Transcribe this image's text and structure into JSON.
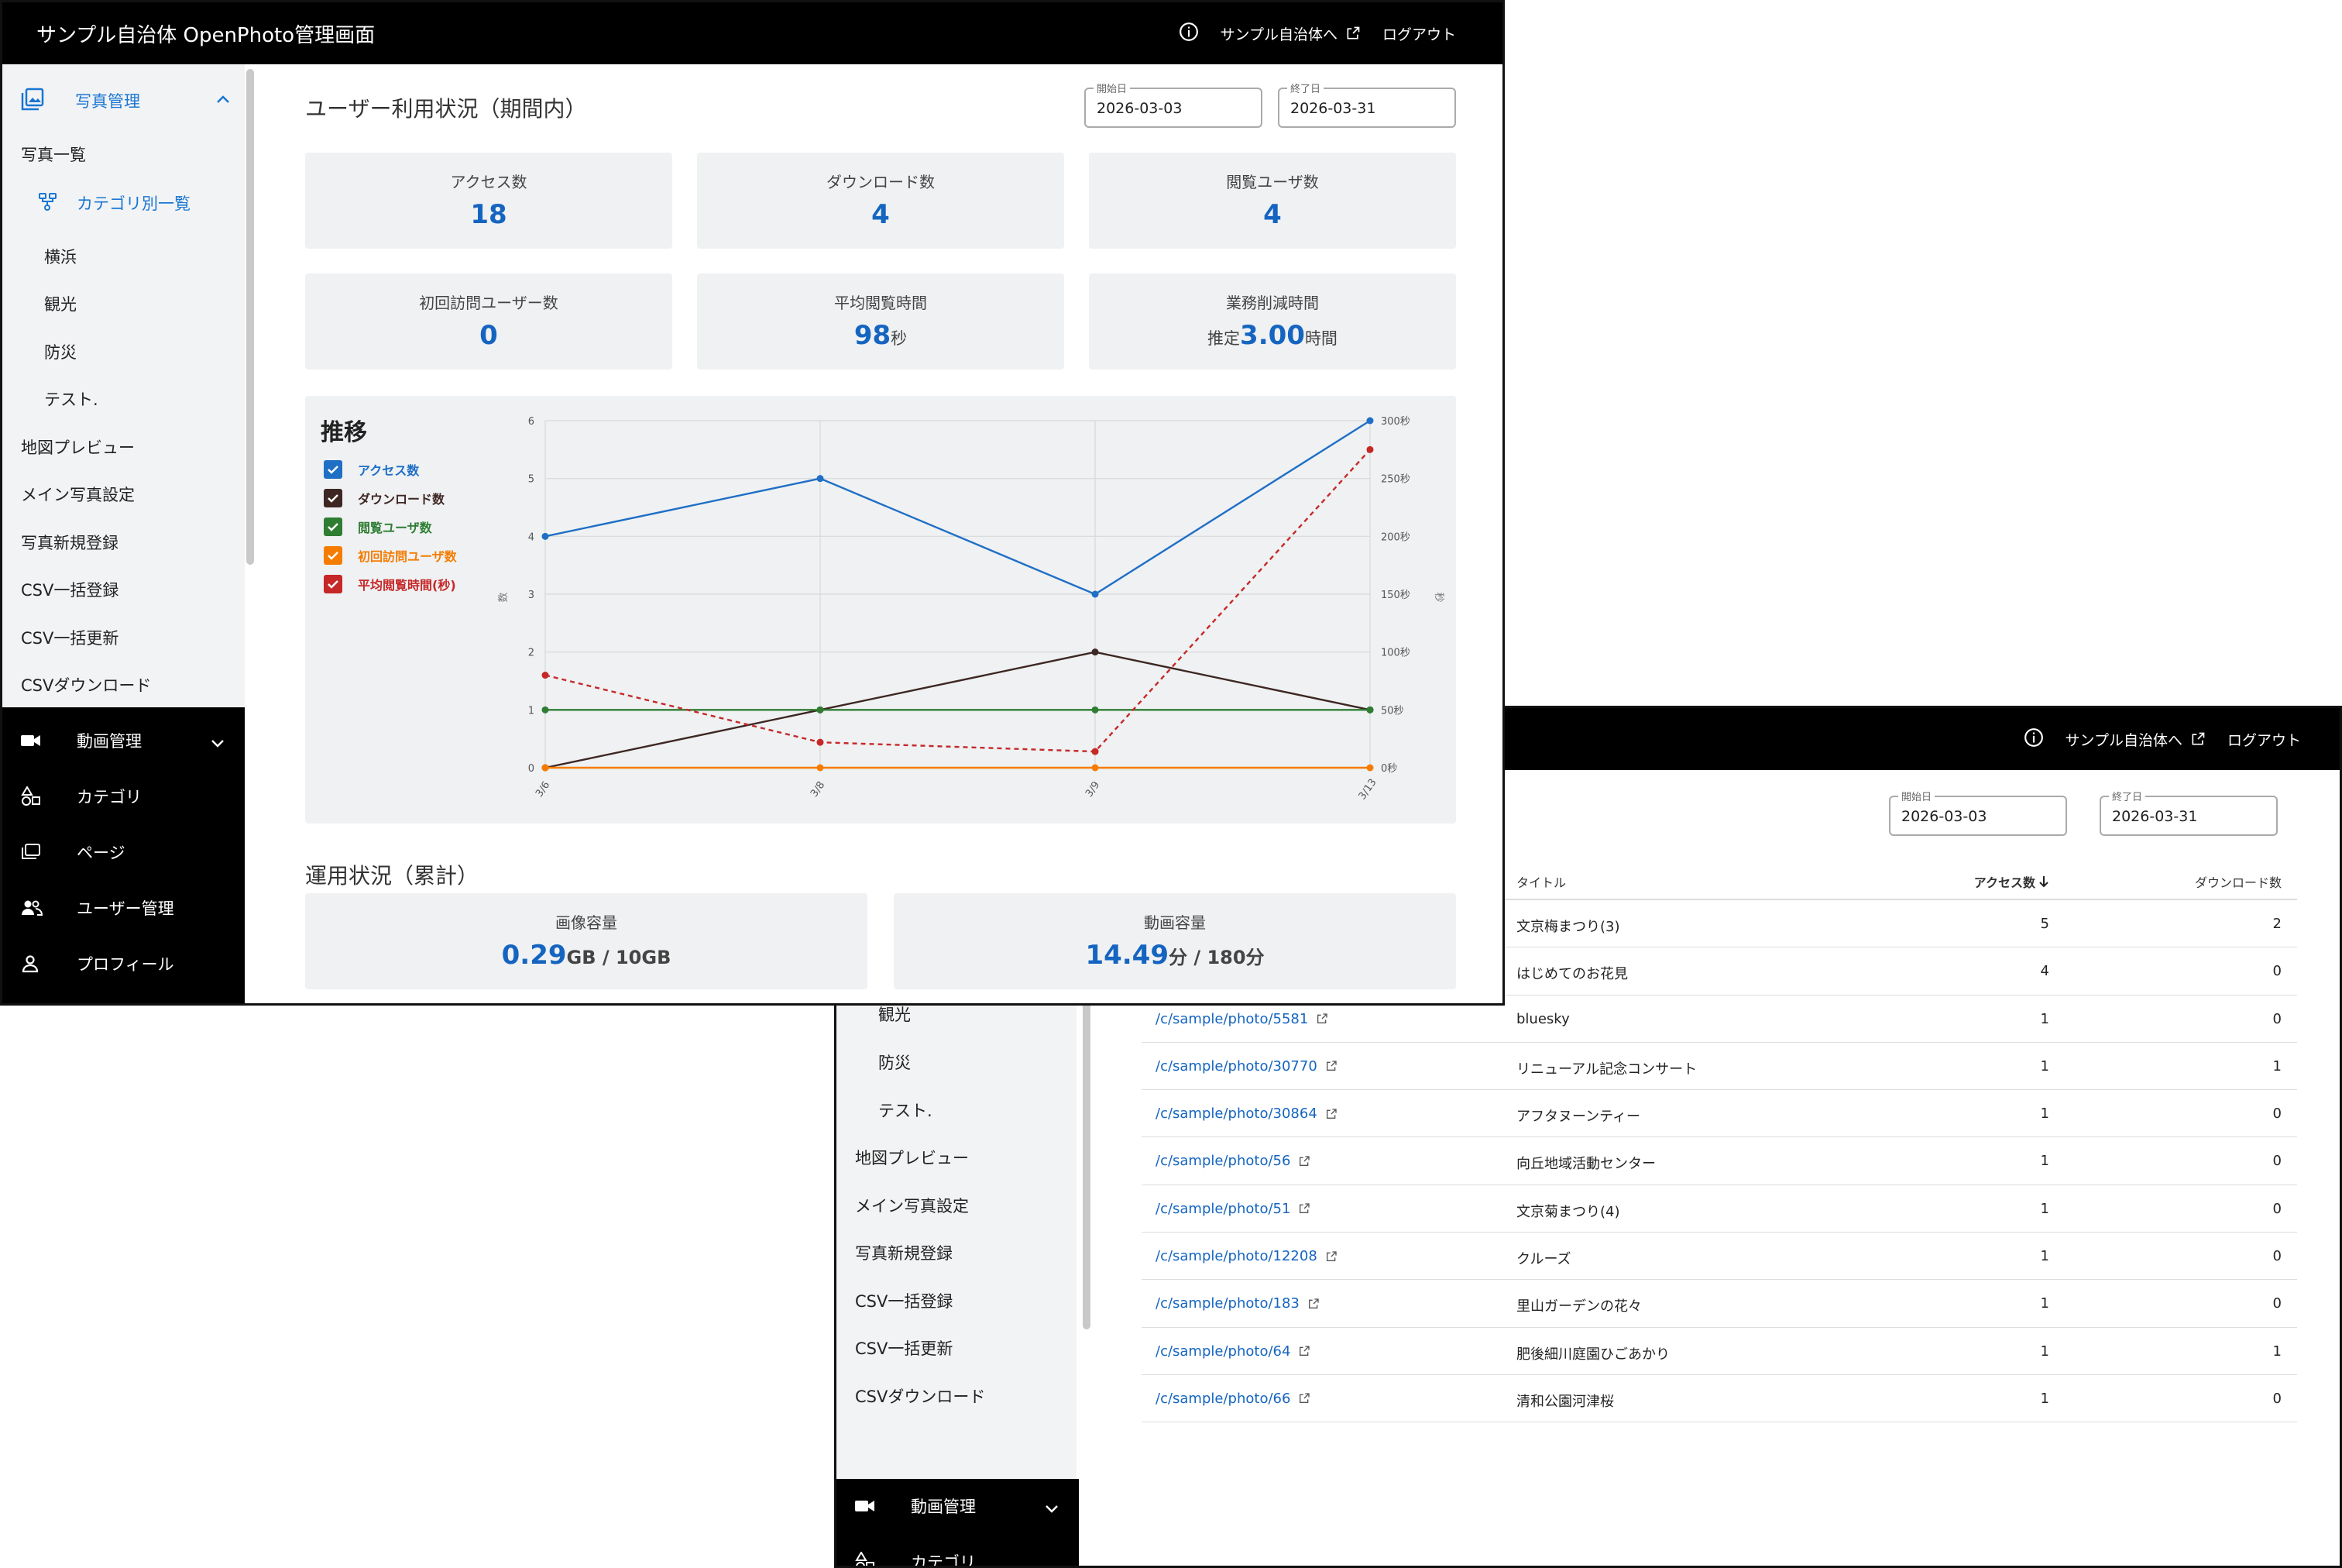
{
  "app": {
    "title": "サンプル自治体 OpenPhoto管理画面"
  },
  "topnav": {
    "info_icon": "info-icon",
    "site_link": "サンプル自治体へ",
    "logout": "ログアウト"
  },
  "sidebar": {
    "photo_section": "写真管理",
    "photo_list": "写真一覧",
    "category_list": "カテゴリ別一覧",
    "categories": [
      "横浜",
      "観光",
      "防災",
      "テスト."
    ],
    "items": [
      "地図プレビュー",
      "メイン写真設定",
      "写真新規登録",
      "CSV一括登録",
      "CSV一括更新",
      "CSVダウンロード"
    ],
    "dark_items": [
      "動画管理",
      "カテゴリ",
      "ページ",
      "ユーザー管理",
      "プロフィール"
    ]
  },
  "usage": {
    "title": "ユーザー利用状況（期間内）",
    "start_label": "開始日",
    "start_value": "2026-03-03",
    "end_label": "終了日",
    "end_value": "2026-03-31",
    "stats": [
      {
        "label": "アクセス数",
        "value": "18"
      },
      {
        "label": "ダウンロード数",
        "value": "4"
      },
      {
        "label": "閲覧ユーザ数",
        "value": "4"
      },
      {
        "label": "初回訪問ユーザー数",
        "value": "0"
      },
      {
        "label": "平均閲覧時間",
        "value": "98",
        "unit": "秒"
      },
      {
        "label": "業務削減時間",
        "prefix": "推定",
        "value": "3.00",
        "unit": "時間"
      }
    ]
  },
  "chart_data": {
    "type": "line",
    "title": "推移",
    "x": [
      "3/6",
      "3/8",
      "3/9",
      "3/13"
    ],
    "ylabel_left": "数",
    "ylabel_right": "秒",
    "ylim_left": [
      0,
      6
    ],
    "ylim_right": [
      0,
      300
    ],
    "yticks_left": [
      "0",
      "1",
      "2",
      "3",
      "4",
      "5",
      "6"
    ],
    "yticks_right": [
      "0秒",
      "50秒",
      "100秒",
      "150秒",
      "200秒",
      "250秒",
      "300秒"
    ],
    "grid": true,
    "legend_position": "top-left",
    "series": [
      {
        "name": "アクセス数",
        "color": "#1f6fc5",
        "axis": "left",
        "style": "solid",
        "values": [
          4,
          5,
          3,
          6
        ]
      },
      {
        "name": "ダウンロード数",
        "color": "#3e2723",
        "axis": "left",
        "style": "solid",
        "values": [
          0,
          1,
          2,
          1
        ]
      },
      {
        "name": "閲覧ユーザ数",
        "color": "#2e7d32",
        "axis": "left",
        "style": "solid",
        "values": [
          1,
          1,
          1,
          1
        ]
      },
      {
        "name": "初回訪問ユーザ数",
        "color": "#f57c00",
        "axis": "left",
        "style": "solid",
        "values": [
          0,
          0,
          0,
          0
        ]
      },
      {
        "name": "平均閲覧時間(秒)",
        "color": "#c62828",
        "axis": "right",
        "style": "dashed",
        "values": [
          80,
          22,
          14,
          275
        ]
      }
    ]
  },
  "operations": {
    "title": "運用状況（累計）",
    "image_label": "画像容量",
    "image_value": "0.29",
    "image_unit": "GB / 10GB",
    "video_label": "動画容量",
    "video_value": "14.49",
    "video_unit": "分 / 180分"
  },
  "table": {
    "col_title": "タイトル",
    "col_access": "アクセス数",
    "col_download": "ダウンロード数",
    "rows": [
      {
        "path": "",
        "title": "文京梅まつり(3)",
        "access": "5",
        "download": "2"
      },
      {
        "path": "",
        "title": "はじめてのお花見",
        "access": "4",
        "download": "0"
      },
      {
        "path": "/c/sample/photo/5581",
        "title": "bluesky",
        "access": "1",
        "download": "0"
      },
      {
        "path": "/c/sample/photo/30770",
        "title": "リニューアル記念コンサート",
        "access": "1",
        "download": "1"
      },
      {
        "path": "/c/sample/photo/30864",
        "title": "アフタヌーンティー",
        "access": "1",
        "download": "0"
      },
      {
        "path": "/c/sample/photo/56",
        "title": "向丘地域活動センター",
        "access": "1",
        "download": "0"
      },
      {
        "path": "/c/sample/photo/51",
        "title": "文京菊まつり(4)",
        "access": "1",
        "download": "0"
      },
      {
        "path": "/c/sample/photo/12208",
        "title": "クルーズ",
        "access": "1",
        "download": "0"
      },
      {
        "path": "/c/sample/photo/183",
        "title": "里山ガーデンの花々",
        "access": "1",
        "download": "0"
      },
      {
        "path": "/c/sample/photo/64",
        "title": "肥後細川庭園ひごあかり",
        "access": "1",
        "download": "1"
      },
      {
        "path": "/c/sample/photo/66",
        "title": "清和公園河津桜",
        "access": "1",
        "download": "0"
      }
    ]
  }
}
